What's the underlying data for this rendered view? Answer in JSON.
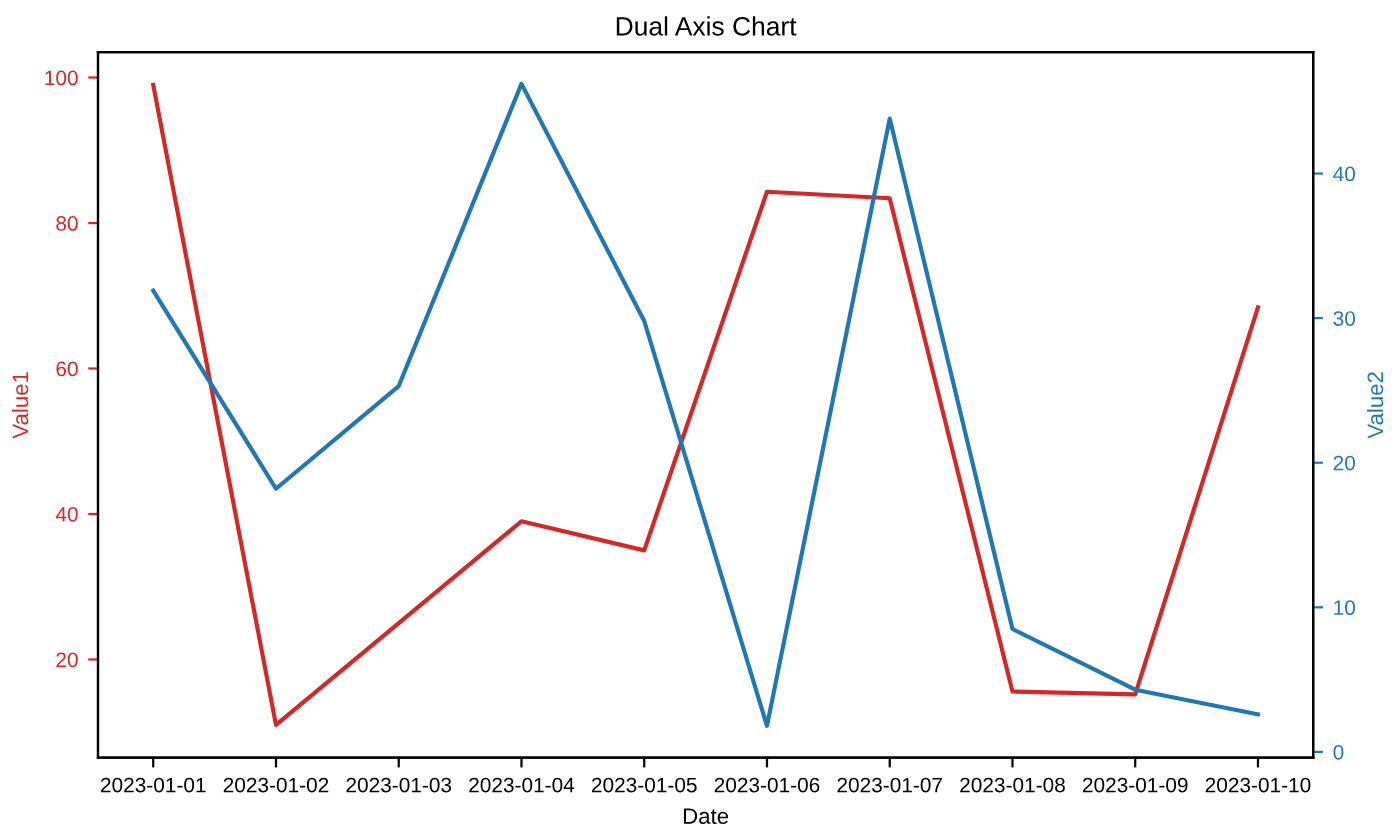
{
  "chart_data": {
    "type": "line",
    "title": "Dual Axis Chart",
    "xlabel": "Date",
    "ylabel": "Value1",
    "y2label": "Value2",
    "x": [
      "2023-01-01",
      "2023-01-02",
      "2023-01-03",
      "2023-01-04",
      "2023-01-05",
      "2023-01-06",
      "2023-01-07",
      "2023-01-08",
      "2023-01-09",
      "2023-01-10"
    ],
    "xlim": [
      "2022-12-31T13:12",
      "2023-01-10T10:48"
    ],
    "xticks": [
      "2023-01-01",
      "2023-01-02",
      "2023-01-03",
      "2023-01-04",
      "2023-01-05",
      "2023-01-06",
      "2023-01-07",
      "2023-01-08",
      "2023-01-09",
      "2023-01-10"
    ],
    "ylim": [
      6.5,
      103.5
    ],
    "yticks": [
      20,
      40,
      60,
      80,
      100
    ],
    "y2lim": [
      -0.4,
      48.4
    ],
    "y2ticks": [
      0,
      10,
      20,
      30,
      40
    ],
    "series": [
      {
        "color": "#d62728",
        "values": [
          99,
          11,
          25,
          39,
          35,
          84.3,
          83.4,
          15.6,
          15.2,
          68.4
        ]
      },
      {
        "color": "#1f77b4",
        "axis": "y2",
        "values": [
          31.9,
          18.2,
          25.3,
          46.2,
          29.8,
          1.8,
          43.8,
          8.5,
          4.3,
          2.6
        ]
      }
    ],
    "grid": false,
    "line_style": "solid"
  }
}
